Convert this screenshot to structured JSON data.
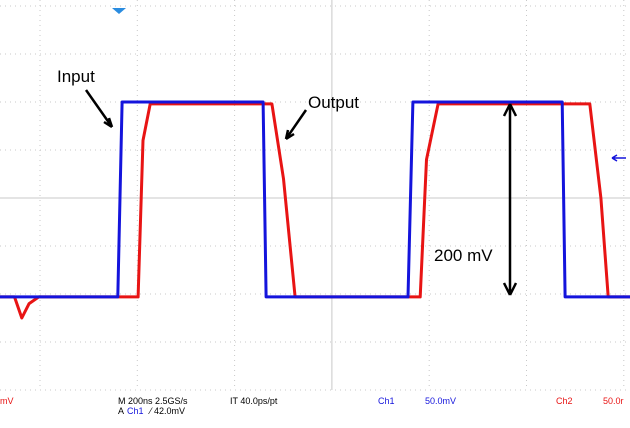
{
  "chart_data": {
    "type": "line",
    "xlim": [
      0,
      1300
    ],
    "ylim": [
      -200,
      200
    ],
    "series": [
      {
        "name": "Input",
        "color": "#1414dc",
        "x": [
          0,
          243,
          252,
          543,
          549,
          842,
          852,
          1160,
          1166,
          1300
        ],
        "values": [
          -103,
          -103,
          100,
          100,
          -103,
          -103,
          100,
          100,
          -103,
          -103
        ]
      },
      {
        "name": "Output",
        "color": "#e81414",
        "x": [
          0,
          30,
          45,
          60,
          80,
          285,
          295,
          310,
          561,
          585,
          609,
          867,
          880,
          904,
          1217,
          1240,
          1255,
          1300
        ],
        "values": [
          -103,
          -103,
          -125,
          -110,
          -103,
          -103,
          60,
          98,
          98,
          20,
          -103,
          -103,
          40,
          98,
          98,
          0,
          -103,
          -103
        ]
      }
    ],
    "annotations": [
      "200 mV"
    ],
    "status_bar": {
      "ch2_unit": "mV",
      "timebase": "M 200ns 2.5GS/s",
      "trigger_prefix": "A",
      "trigger_channel": "Ch1",
      "trigger_level": "⁄ 42.0mV",
      "interpolation": "IT 40.0ps/pt",
      "ch1_label": "Ch1",
      "ch1_scale": "50.0mV",
      "ch2_label": "Ch2",
      "ch2_scale": "50.0r"
    }
  }
}
